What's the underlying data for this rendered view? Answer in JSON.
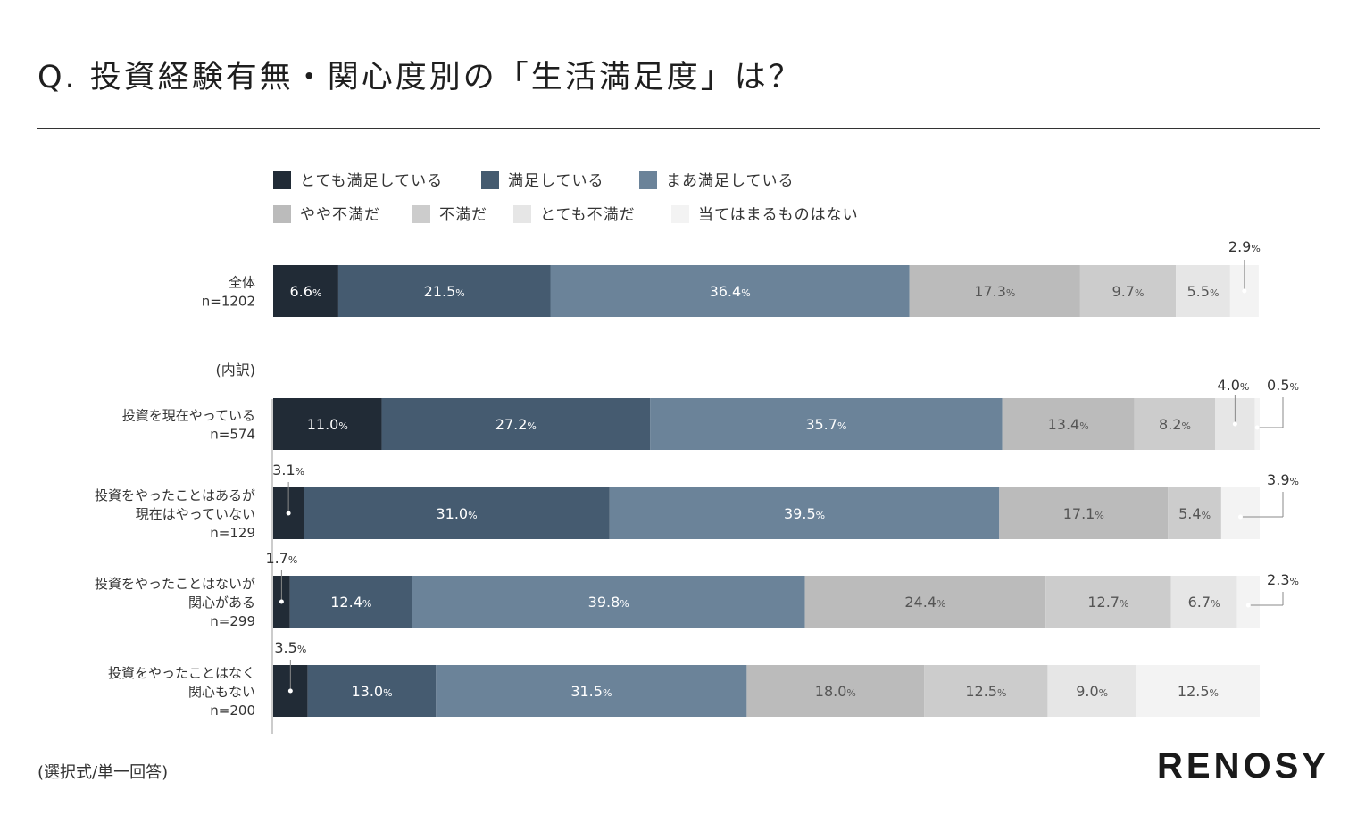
{
  "title": "Q. 投資経験有無・関心度別の「生活満足度」は？",
  "footnote": "(選択式/単一回答)",
  "logo": "RENOSY",
  "breakdown_label": "(内訳)",
  "colors": [
    "#212b36",
    "#455b70",
    "#6b8399",
    "#bbbbbb",
    "#cccccc",
    "#e6e6e6",
    "#f3f3f3"
  ],
  "chart_data": {
    "type": "bar",
    "orientation": "horizontal",
    "stacked": true,
    "percent_suffix": "%",
    "series": [
      {
        "name": "とても満足している",
        "values": [
          6.6,
          11.0,
          3.1,
          1.7,
          3.5
        ]
      },
      {
        "name": "満足している",
        "values": [
          21.5,
          27.2,
          31.0,
          12.4,
          13.0
        ]
      },
      {
        "name": "まあ満足している",
        "values": [
          36.4,
          35.7,
          39.5,
          39.8,
          31.5
        ]
      },
      {
        "name": "やや不満だ",
        "values": [
          17.3,
          13.4,
          17.1,
          24.4,
          18.0
        ]
      },
      {
        "name": "不満だ",
        "values": [
          9.7,
          8.2,
          5.4,
          12.7,
          12.5
        ]
      },
      {
        "name": "とても不満だ",
        "values": [
          5.5,
          4.0,
          0,
          6.7,
          9.0
        ]
      },
      {
        "name": "当てはまるものはない",
        "values": [
          2.9,
          0.5,
          3.9,
          2.3,
          12.5
        ]
      }
    ],
    "categories": [
      {
        "lines": [
          "全体",
          "n=1202"
        ]
      },
      {
        "lines": [
          "投資を現在やっている",
          "n=574"
        ]
      },
      {
        "lines": [
          "投資をやったことはあるが",
          "現在はやっていない",
          "n=129"
        ]
      },
      {
        "lines": [
          "投資をやったことはないが",
          "関心がある",
          "n=299"
        ]
      },
      {
        "lines": [
          "投資をやったことはなく",
          "関心もない",
          "n=200"
        ]
      }
    ],
    "legend": "top"
  }
}
